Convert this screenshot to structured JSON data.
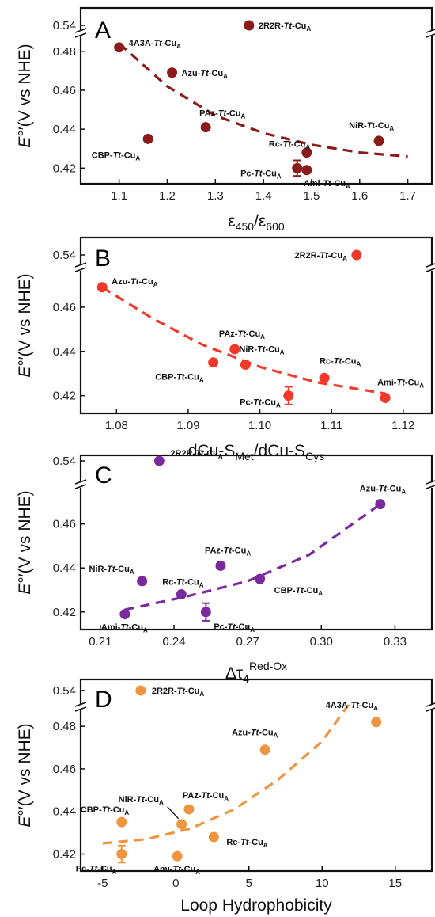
{
  "chart_data": [
    {
      "type": "scatter",
      "panel": "A",
      "xlabel": "ε450/ε600",
      "ylabel": "E°′(V vs NHE)",
      "color": "#8b1a1a",
      "xlim": [
        1.02,
        1.75
      ],
      "xticks": [
        1.1,
        1.2,
        1.3,
        1.4,
        1.5,
        1.6,
        1.7
      ],
      "yticks_lower": [
        0.42,
        0.44,
        0.46,
        0.48
      ],
      "yticks_upper": [
        0.54
      ],
      "points": [
        {
          "name": "4A3A",
          "x": 1.1,
          "y": 0.482
        },
        {
          "name": "Azu",
          "x": 1.21,
          "y": 0.469
        },
        {
          "name": "PAz",
          "x": 1.28,
          "y": 0.441
        },
        {
          "name": "CBP",
          "x": 1.16,
          "y": 0.435
        },
        {
          "name": "NiR",
          "x": 1.64,
          "y": 0.434
        },
        {
          "name": "Rc",
          "x": 1.49,
          "y": 0.428
        },
        {
          "name": "Pc",
          "x": 1.47,
          "y": 0.42,
          "err": 0.004
        },
        {
          "name": "Ami",
          "x": 1.49,
          "y": 0.419
        },
        {
          "name": "2R2R",
          "x": 1.37,
          "y": 0.54
        }
      ],
      "fit": [
        [
          1.1,
          0.484
        ],
        [
          1.2,
          0.462
        ],
        [
          1.3,
          0.447
        ],
        [
          1.4,
          0.438
        ],
        [
          1.5,
          0.432
        ],
        [
          1.6,
          0.428
        ],
        [
          1.7,
          0.426
        ]
      ]
    },
    {
      "type": "scatter",
      "panel": "B",
      "xlabel": "dCu-SMet/dCu-SCys",
      "ylabel": "E°′(V vs NHE)",
      "color": "#f0392b",
      "xlim": [
        1.075,
        1.124
      ],
      "xticks": [
        1.08,
        1.09,
        1.1,
        1.11,
        1.12
      ],
      "yticks_lower": [
        0.42,
        0.44,
        0.46
      ],
      "yticks_upper": [
        0.54
      ],
      "points": [
        {
          "name": "Azu",
          "x": 1.078,
          "y": 0.469
        },
        {
          "name": "PAz",
          "x": 1.0965,
          "y": 0.441
        },
        {
          "name": "CBP",
          "x": 1.0935,
          "y": 0.435
        },
        {
          "name": "NiR",
          "x": 1.098,
          "y": 0.434
        },
        {
          "name": "Rc",
          "x": 1.109,
          "y": 0.428
        },
        {
          "name": "Pc",
          "x": 1.104,
          "y": 0.42,
          "err": 0.004
        },
        {
          "name": "Ami",
          "x": 1.1175,
          "y": 0.419
        },
        {
          "name": "2R2R",
          "x": 1.1135,
          "y": 0.54
        }
      ],
      "fit": [
        [
          1.078,
          0.469
        ],
        [
          1.085,
          0.455
        ],
        [
          1.092,
          0.443
        ],
        [
          1.1,
          0.433
        ],
        [
          1.108,
          0.426
        ],
        [
          1.1175,
          0.421
        ]
      ]
    },
    {
      "type": "scatter",
      "panel": "C",
      "xlabel": "Δτ4Red-Ox",
      "ylabel": "E°′(V vs NHE)",
      "color": "#7b2a9e",
      "xlim": [
        0.202,
        0.345
      ],
      "xticks": [
        0.21,
        0.24,
        0.27,
        0.3,
        0.33
      ],
      "yticks_lower": [
        0.42,
        0.44,
        0.46
      ],
      "yticks_upper": [
        0.54
      ],
      "points": [
        {
          "name": "Azu",
          "x": 0.324,
          "y": 0.469
        },
        {
          "name": "PAz",
          "x": 0.259,
          "y": 0.441
        },
        {
          "name": "CBP",
          "x": 0.275,
          "y": 0.435
        },
        {
          "name": "NiR",
          "x": 0.227,
          "y": 0.434
        },
        {
          "name": "Rc",
          "x": 0.243,
          "y": 0.428
        },
        {
          "name": "Pc",
          "x": 0.253,
          "y": 0.42,
          "err": 0.004
        },
        {
          "name": "Ami",
          "x": 0.22,
          "y": 0.419
        },
        {
          "name": "2R2R",
          "x": 0.234,
          "y": 0.54
        }
      ],
      "fit": [
        [
          0.22,
          0.421
        ],
        [
          0.245,
          0.427
        ],
        [
          0.27,
          0.434
        ],
        [
          0.295,
          0.446
        ],
        [
          0.324,
          0.469
        ]
      ]
    },
    {
      "type": "scatter",
      "panel": "D",
      "xlabel": "Loop Hydrophobicity",
      "ylabel": "E°′(V vs NHE)",
      "color": "#f0953f",
      "xlim": [
        -6.5,
        17.5
      ],
      "xticks": [
        -5,
        0,
        5,
        10,
        15
      ],
      "yticks_lower": [
        0.42,
        0.44,
        0.46,
        0.48
      ],
      "yticks_upper": [
        0.54
      ],
      "points": [
        {
          "name": "4A3A",
          "x": 13.7,
          "y": 0.482
        },
        {
          "name": "Azu",
          "x": 6.1,
          "y": 0.469
        },
        {
          "name": "PAz",
          "x": 0.9,
          "y": 0.441
        },
        {
          "name": "CBP",
          "x": -3.7,
          "y": 0.435
        },
        {
          "name": "NiR",
          "x": 0.4,
          "y": 0.434
        },
        {
          "name": "Rc",
          "x": 2.6,
          "y": 0.428
        },
        {
          "name": "Pc",
          "x": -3.7,
          "y": 0.42,
          "err": 0.004
        },
        {
          "name": "Ami",
          "x": 0.1,
          "y": 0.419
        },
        {
          "name": "2R2R",
          "x": -2.4,
          "y": 0.54
        }
      ],
      "fit": [
        [
          -5.0,
          0.425
        ],
        [
          -2.0,
          0.427
        ],
        [
          1.0,
          0.432
        ],
        [
          4.0,
          0.441
        ],
        [
          7.0,
          0.455
        ],
        [
          10.0,
          0.473
        ],
        [
          11.8,
          0.49
        ]
      ]
    }
  ],
  "labels": {
    "A": {
      "letter": "A",
      "xlabel_main": "ε",
      "sub1": "450",
      "slash": "/ε",
      "sub2": "600"
    },
    "B": {
      "letter": "B",
      "xlabel_main": "dCu-S",
      "sub1": "Met",
      "slash": "/dCu-S",
      "sub2": "Cys"
    },
    "C": {
      "letter": "C",
      "xlabel_main": "Δτ",
      "sub1": "4",
      "sup": "Red-Ox"
    },
    "D": {
      "letter": "D",
      "xlabel_main": "Loop Hydrophobicity"
    },
    "ylabel_E": "E",
    "ylabel_rest": "°′(V vs NHE)",
    "suffix": "-",
    "tt": "Tt",
    "cu": "-Cu",
    "cu_sub": "A"
  }
}
